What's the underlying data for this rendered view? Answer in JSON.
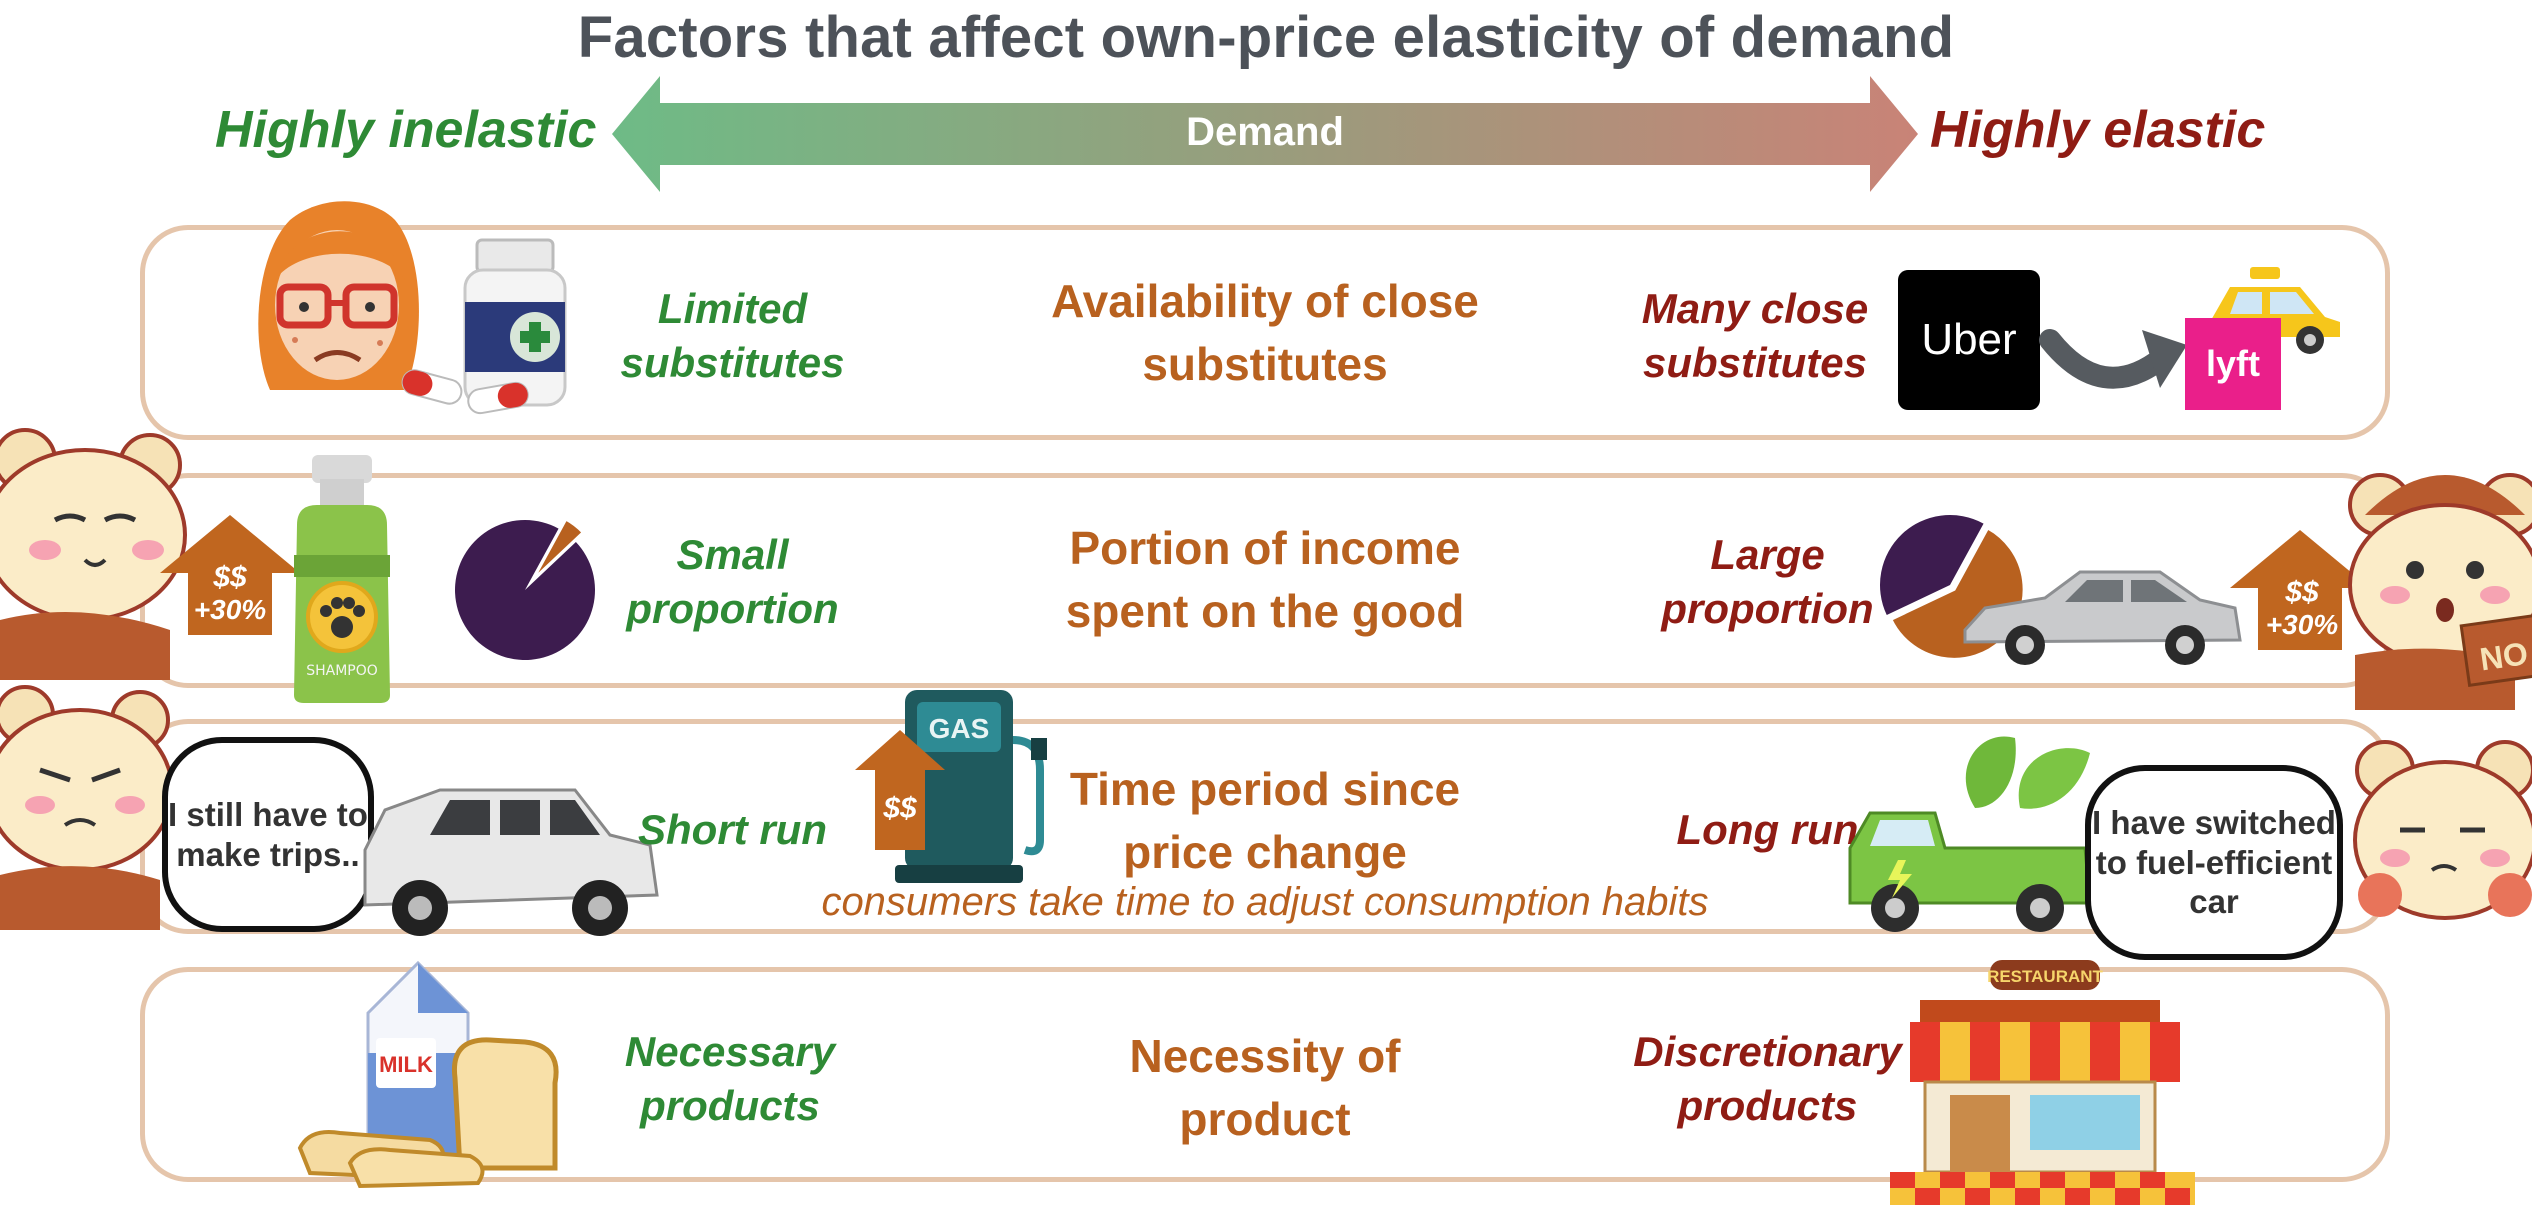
{
  "title": "Factors that affect own-price elasticity of demand",
  "scale": {
    "left_label": "Highly inelastic",
    "center_label": "Demand",
    "right_label": "Highly elastic"
  },
  "colors": {
    "inelastic_green": "#2e8a35",
    "elastic_red": "#8f1c14",
    "factor_orange": "#b8611f",
    "row_border": "#e5c5ab",
    "pie_purple": "#3d1c4f"
  },
  "rows": [
    {
      "factor": "Availability of close substitutes",
      "inelastic": "Limited substitutes",
      "elastic": "Many close substitutes",
      "brand_left": "Uber",
      "brand_right": "lyft",
      "icons_left": [
        "worried-woman-icon",
        "medicine-bottle-icon",
        "pill-capsule-icon"
      ],
      "icons_right": [
        "uber-logo-icon",
        "curved-arrow-icon",
        "lyft-logo-icon",
        "taxi-icon"
      ]
    },
    {
      "factor": "Portion of income spent on the good",
      "inelastic": "Small proportion",
      "elastic": "Large proportion",
      "price_tag": "$$",
      "price_change": "+30%",
      "shampoo_label": "SHAMPOO",
      "sign_text": "NO",
      "small_share": 0.05,
      "large_share": 0.6,
      "icons_left": [
        "calm-bear-icon",
        "price-up-arrow-icon",
        "shampoo-bottle-icon",
        "small-slice-pie-icon"
      ],
      "icons_right": [
        "large-slice-pie-icon",
        "sedan-car-icon",
        "price-up-arrow-icon",
        "shocked-bear-icon"
      ]
    },
    {
      "factor": "Time period since price change",
      "note": "consumers take time to adjust consumption habits",
      "inelastic": "Short run",
      "elastic": "Long run",
      "gas_label": "GAS",
      "price_tag": "$$",
      "bubble_left": "I still have to make trips..",
      "bubble_right": "I have switched to fuel-efficient car",
      "icons_left": [
        "grumpy-bear-icon",
        "suv-icon",
        "gas-pump-icon"
      ],
      "icons_right": [
        "eco-truck-icon",
        "sleepy-bear-icon"
      ]
    },
    {
      "factor": "Necessity of product",
      "inelastic": "Necessary products",
      "elastic": "Discretionary products",
      "milk_label": "MILK",
      "restaurant_label": "RESTAURANT",
      "icons_left": [
        "milk-carton-icon",
        "bread-icon"
      ],
      "icons_right": [
        "restaurant-icon"
      ]
    }
  ]
}
